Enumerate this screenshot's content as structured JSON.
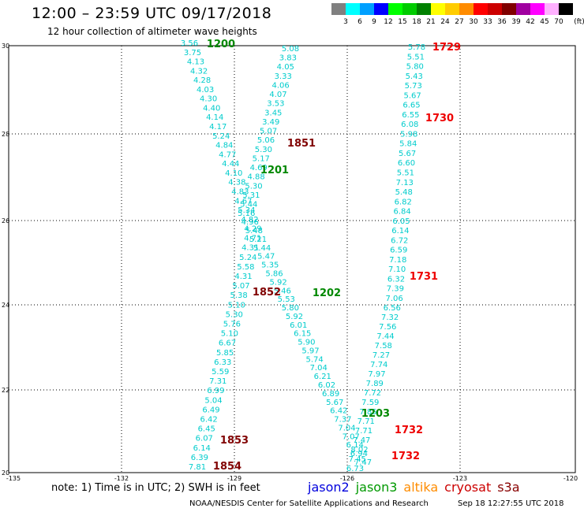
{
  "header": {
    "title": "12:00 – 23:59 UTC 09/17/2018",
    "subtitle": "12 hour collection of altimeter wave heights"
  },
  "legend": {
    "unit": "(ft)",
    "bins": [
      {
        "label": "3",
        "color": "#808080"
      },
      {
        "label": "6",
        "color": "#00ffff"
      },
      {
        "label": "9",
        "color": "#00a0ff"
      },
      {
        "label": "12",
        "color": "#0000ff"
      },
      {
        "label": "15",
        "color": "#00ff00"
      },
      {
        "label": "18",
        "color": "#00cc00"
      },
      {
        "label": "21",
        "color": "#008000"
      },
      {
        "label": "24",
        "color": "#ffff00"
      },
      {
        "label": "27",
        "color": "#ffcc00"
      },
      {
        "label": "30",
        "color": "#ff8c00"
      },
      {
        "label": "33",
        "color": "#ff0000"
      },
      {
        "label": "36",
        "color": "#cc0000"
      },
      {
        "label": "39",
        "color": "#800000"
      },
      {
        "label": "42",
        "color": "#a000a0"
      },
      {
        "label": "45",
        "color": "#ff00ff"
      },
      {
        "label": "70",
        "color": "#ffb0ff"
      },
      {
        "label": "",
        "color": "#000000"
      }
    ]
  },
  "map_axes": {
    "lon_labels": [
      "-135",
      "-132",
      "-129",
      "-126",
      "-123",
      "-120"
    ],
    "lat_labels": [
      "30",
      "28",
      "26",
      "24",
      "22",
      "20"
    ]
  },
  "tracks": {
    "jason3_a": [
      "3.56",
      "3.75",
      "4.13",
      "4.32",
      "4.28",
      "4.03",
      "4.30",
      "4.40",
      "4.14",
      "4.17",
      "5.24",
      "4.84",
      "4.77",
      "4.44",
      "4.10",
      "4.38",
      "4.83",
      "4.67",
      "5.34",
      "4.82",
      "4.29",
      "4.71",
      "4.31",
      "5.24",
      "5.58",
      "4.31",
      "5.07",
      "5.38",
      "5.10",
      "5.30",
      "5.76",
      "5.10",
      "6.67",
      "5.85",
      "6.33",
      "5.59",
      "7.31",
      "6.99",
      "5.04",
      "6.49",
      "6.42",
      "6.45",
      "6.07",
      "6.14",
      "6.39",
      "7.81"
    ],
    "cryosat_a": [
      "5.08",
      "3.83",
      "4.05",
      "3.33",
      "4.06",
      "4.07",
      "3.53",
      "3.45",
      "3.49",
      "5.07",
      "5.06",
      "5.30",
      "5.17",
      "4.69",
      "4.88",
      "5.30",
      "5.31",
      "5.44",
      "5.16",
      "4.96",
      "5.48",
      "5.21",
      "5.44",
      "5.47",
      "5.35",
      "5.86",
      "5.92",
      "5.46",
      "5.53",
      "5.80",
      "5.92",
      "6.01",
      "6.15",
      "5.90",
      "5.97",
      "5.74",
      "7.04",
      "6.21",
      "6.02",
      "6.89",
      "5.67",
      "6.42",
      "7.37",
      "7.04",
      "7.07",
      "6.14",
      "6.94",
      "7.47"
    ],
    "s3a_a": [
      "5.78",
      "5.51",
      "5.80",
      "5.43",
      "5.73",
      "5.67",
      "6.65",
      "6.55",
      "6.08",
      "5.98",
      "5.84",
      "5.67",
      "6.60",
      "5.51",
      "7.13",
      "5.48",
      "6.82",
      "6.84",
      "6.05",
      "6.14",
      "6.72",
      "6.59",
      "7.18",
      "7.10",
      "6.32",
      "7.39",
      "7.06",
      "6.56",
      "7.32",
      "7.56",
      "7.44",
      "7.58",
      "7.27",
      "7.74",
      "7.97",
      "7.89",
      "7.72",
      "7.59",
      "7.85",
      "7.71",
      "7.71",
      "7.47",
      "8.02",
      "7.45",
      "6.73"
    ]
  },
  "time_labels": [
    {
      "text": "1200",
      "sat": "j3"
    },
    {
      "text": "1201",
      "sat": "j3"
    },
    {
      "text": "1202",
      "sat": "j3"
    },
    {
      "text": "1203",
      "sat": "j3"
    },
    {
      "text": "1851",
      "sat": "cs"
    },
    {
      "text": "1852",
      "sat": "cs"
    },
    {
      "text": "1853",
      "sat": "cs"
    },
    {
      "text": "1854",
      "sat": "cs"
    },
    {
      "text": "1729",
      "sat": "s3"
    },
    {
      "text": "1730",
      "sat": "s3"
    },
    {
      "text": "1731",
      "sat": "s3"
    },
    {
      "text": "1732",
      "sat": "s3"
    },
    {
      "text": "1732",
      "sat": "s3"
    }
  ],
  "footer": {
    "note": "note:  1) Time is in UTC;  2) SWH is in feet",
    "satellites": [
      {
        "name": "jason2",
        "color": "#0000dd"
      },
      {
        "name": "jason3",
        "color": "#009900"
      },
      {
        "name": "altika",
        "color": "#ff8c00"
      },
      {
        "name": "cryosat",
        "color": "#cc0000"
      },
      {
        "name": "s3a",
        "color": "#880000"
      }
    ],
    "credit": "NOAA/NESDIS Center for Satellite Applications and Research",
    "timestamp": "Sep 18 12:27:55 UTC 2018"
  }
}
